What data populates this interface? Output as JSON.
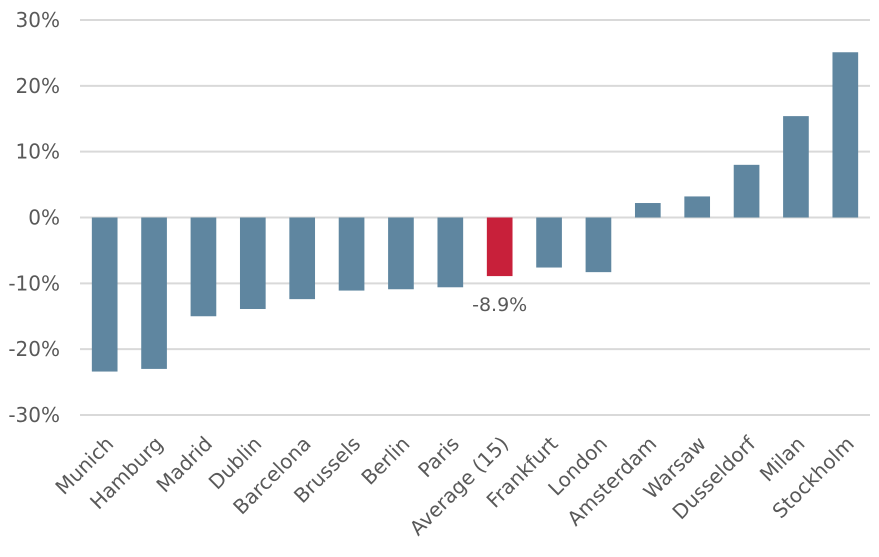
{
  "chart_data": {
    "type": "bar",
    "title": "",
    "xlabel": "",
    "ylabel": "",
    "ylim": [
      -30,
      30
    ],
    "yticks": [
      30,
      20,
      10,
      0,
      -10,
      -20,
      -30
    ],
    "ytick_format": "%",
    "grid": true,
    "categories": [
      "Munich",
      "Hamburg",
      "Madrid",
      "Dublin",
      "Barcelona",
      "Brussels",
      "Berlin",
      "Paris",
      "Average (15)",
      "Frankfurt",
      "London",
      "Amsterdam",
      "Warsaw",
      "Dusseldorf",
      "Milan",
      "Stockholm"
    ],
    "values": [
      -23.4,
      -23.0,
      -15.0,
      -13.9,
      -12.4,
      -11.1,
      -10.9,
      -10.6,
      -8.9,
      -7.6,
      -8.3,
      2.2,
      3.2,
      8.0,
      15.4,
      25.1
    ],
    "colors": {
      "default": "#5f86a0",
      "highlight": "#c8203a",
      "grid": "#d9d9d9",
      "text": "#595959"
    },
    "highlight_category": "Average (15)",
    "annotations": [
      {
        "category": "Average (15)",
        "text": "-8.9%"
      }
    ]
  }
}
